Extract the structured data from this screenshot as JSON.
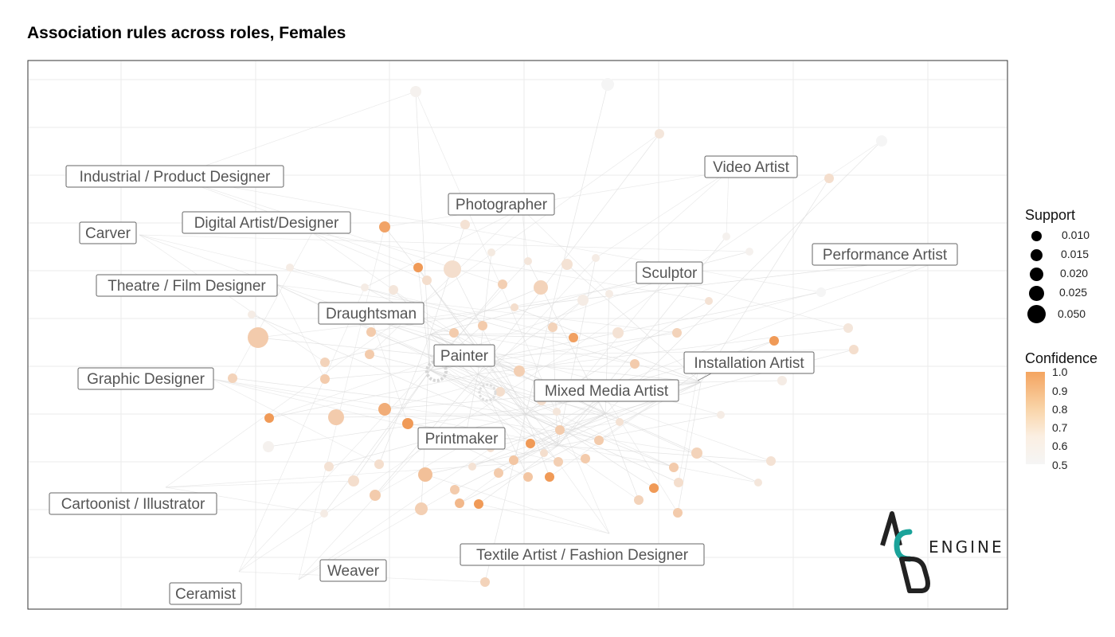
{
  "title": "Association rules across roles, Females",
  "legend": {
    "support_title": "Support",
    "support_values": [
      "0.010",
      "0.015",
      "0.020",
      "0.025",
      "0.050"
    ],
    "confidence_title": "Confidence",
    "confidence_ticks": [
      "1.0",
      "0.9",
      "0.8",
      "0.7",
      "0.6",
      "0.5"
    ],
    "confidence_colors": {
      "high": "#f4a460",
      "low": "#f5f5f5"
    }
  },
  "logo": {
    "text": "ENGINE",
    "letters": "ACD"
  },
  "chart_data": {
    "type": "network",
    "roles": [
      "Industrial / Product Designer",
      "Video Artist",
      "Photographer",
      "Digital Artist/Designer",
      "Carver",
      "Performance Artist",
      "Sculptor",
      "Theatre / Film Designer",
      "Draughtsman",
      "Painter",
      "Installation Artist",
      "Graphic Designer",
      "Mixed Media Artist",
      "Printmaker",
      "Cartoonist / Illustrator",
      "Textile Artist / Fashion Designer",
      "Weaver",
      "Ceramist"
    ],
    "support_scale": [
      0.01,
      0.015,
      0.02,
      0.025,
      0.05
    ],
    "confidence_range": [
      0.5,
      1.0
    ]
  }
}
